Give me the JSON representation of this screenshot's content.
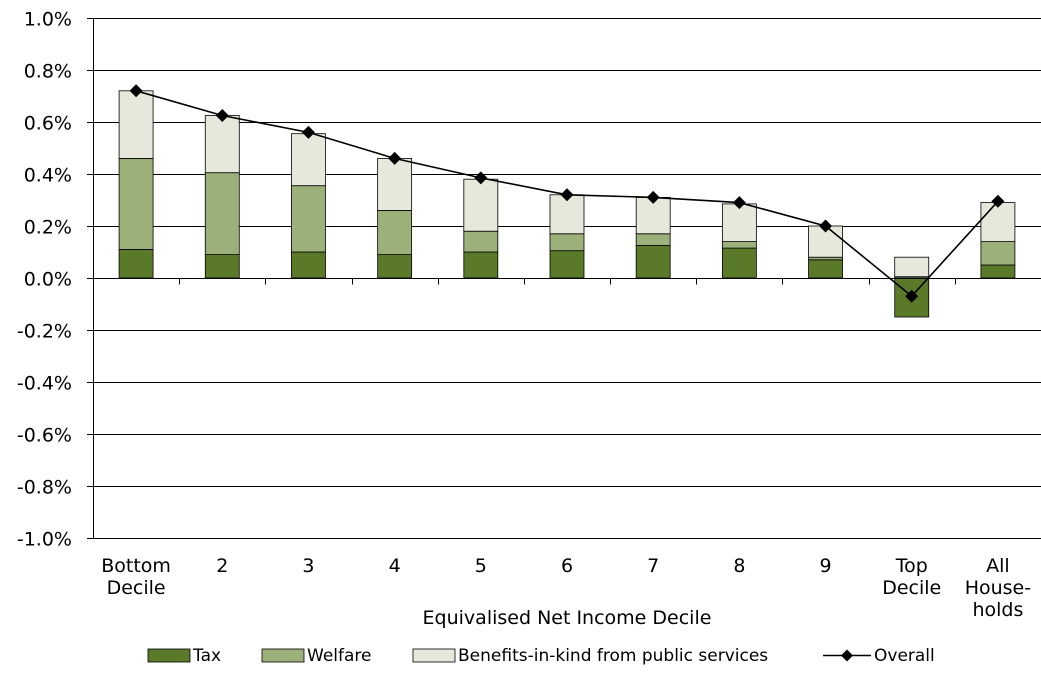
{
  "chart_data": {
    "type": "bar",
    "stacked": true,
    "xlabel": "Equivalised Net Income Decile",
    "ylabel": "",
    "ylim": [
      -1.0,
      1.0
    ],
    "ytick_step": 0.2,
    "y_format": "percent_1dp",
    "grid": true,
    "legend_position": "bottom",
    "categories": [
      [
        "Bottom",
        "Decile"
      ],
      [
        "2"
      ],
      [
        "3"
      ],
      [
        "4"
      ],
      [
        "5"
      ],
      [
        "6"
      ],
      [
        "7"
      ],
      [
        "8"
      ],
      [
        "9"
      ],
      [
        "Top",
        "Decile"
      ],
      [
        "All",
        "House-",
        "holds"
      ]
    ],
    "series": [
      {
        "name": "Tax",
        "kind": "bar",
        "color": "#5a7a2a",
        "values": [
          0.11,
          0.09,
          0.1,
          0.09,
          0.1,
          0.105,
          0.125,
          0.115,
          0.07,
          -0.15,
          0.05
        ]
      },
      {
        "name": "Welfare",
        "kind": "bar",
        "color": "#9cb07a",
        "values": [
          0.35,
          0.315,
          0.255,
          0.17,
          0.08,
          0.065,
          0.045,
          0.025,
          0.01,
          0.005,
          0.09
        ]
      },
      {
        "name": "Benefits-in-kind from public services",
        "kind": "bar",
        "color": "#e6e8dc",
        "values": [
          0.26,
          0.22,
          0.2,
          0.2,
          0.2,
          0.15,
          0.14,
          0.145,
          0.12,
          0.075,
          0.15
        ]
      },
      {
        "name": "Overall",
        "kind": "line",
        "color": "#000000",
        "values": [
          0.72,
          0.625,
          0.56,
          0.46,
          0.385,
          0.32,
          0.31,
          0.29,
          0.2,
          -0.07,
          0.295
        ]
      }
    ]
  }
}
